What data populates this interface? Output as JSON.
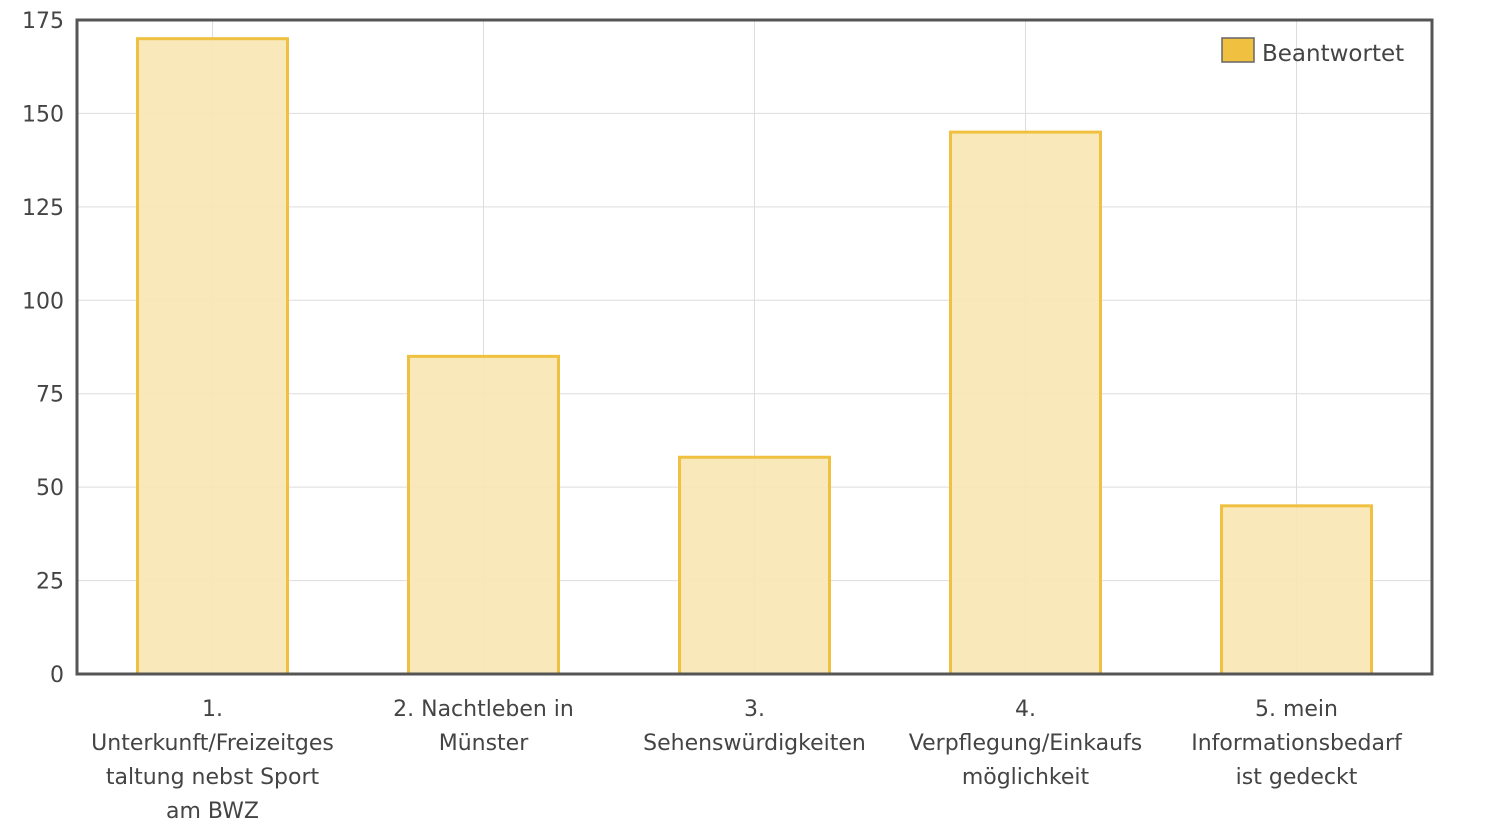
{
  "chart_data": {
    "type": "bar",
    "categories": [
      [
        "1.",
        "Unterkunft/Freizeitges",
        "taltung nebst Sport",
        "am BWZ"
      ],
      [
        "2. Nachtleben in",
        "Münster"
      ],
      [
        "3.",
        "Sehenswürdigkeiten"
      ],
      [
        "4.",
        "Verpflegung/Einkaufs",
        "möglichkeit"
      ],
      [
        "5. mein",
        "Informationsbedarf",
        "ist gedeckt"
      ]
    ],
    "series": [
      {
        "name": "Beantwortet",
        "values": [
          170,
          85,
          58,
          145,
          45
        ]
      }
    ],
    "ylim": [
      0,
      175
    ],
    "yticks": [
      0,
      25,
      50,
      75,
      100,
      125,
      150,
      175
    ],
    "grid": true,
    "legend": "top-right",
    "colors": {
      "bar_fill": "#f8e5b3",
      "bar_stroke": "#f0c040",
      "legend_swatch": "#f0c040",
      "grid": "#dddddd",
      "frame": "#555555",
      "text": "#444444"
    }
  }
}
